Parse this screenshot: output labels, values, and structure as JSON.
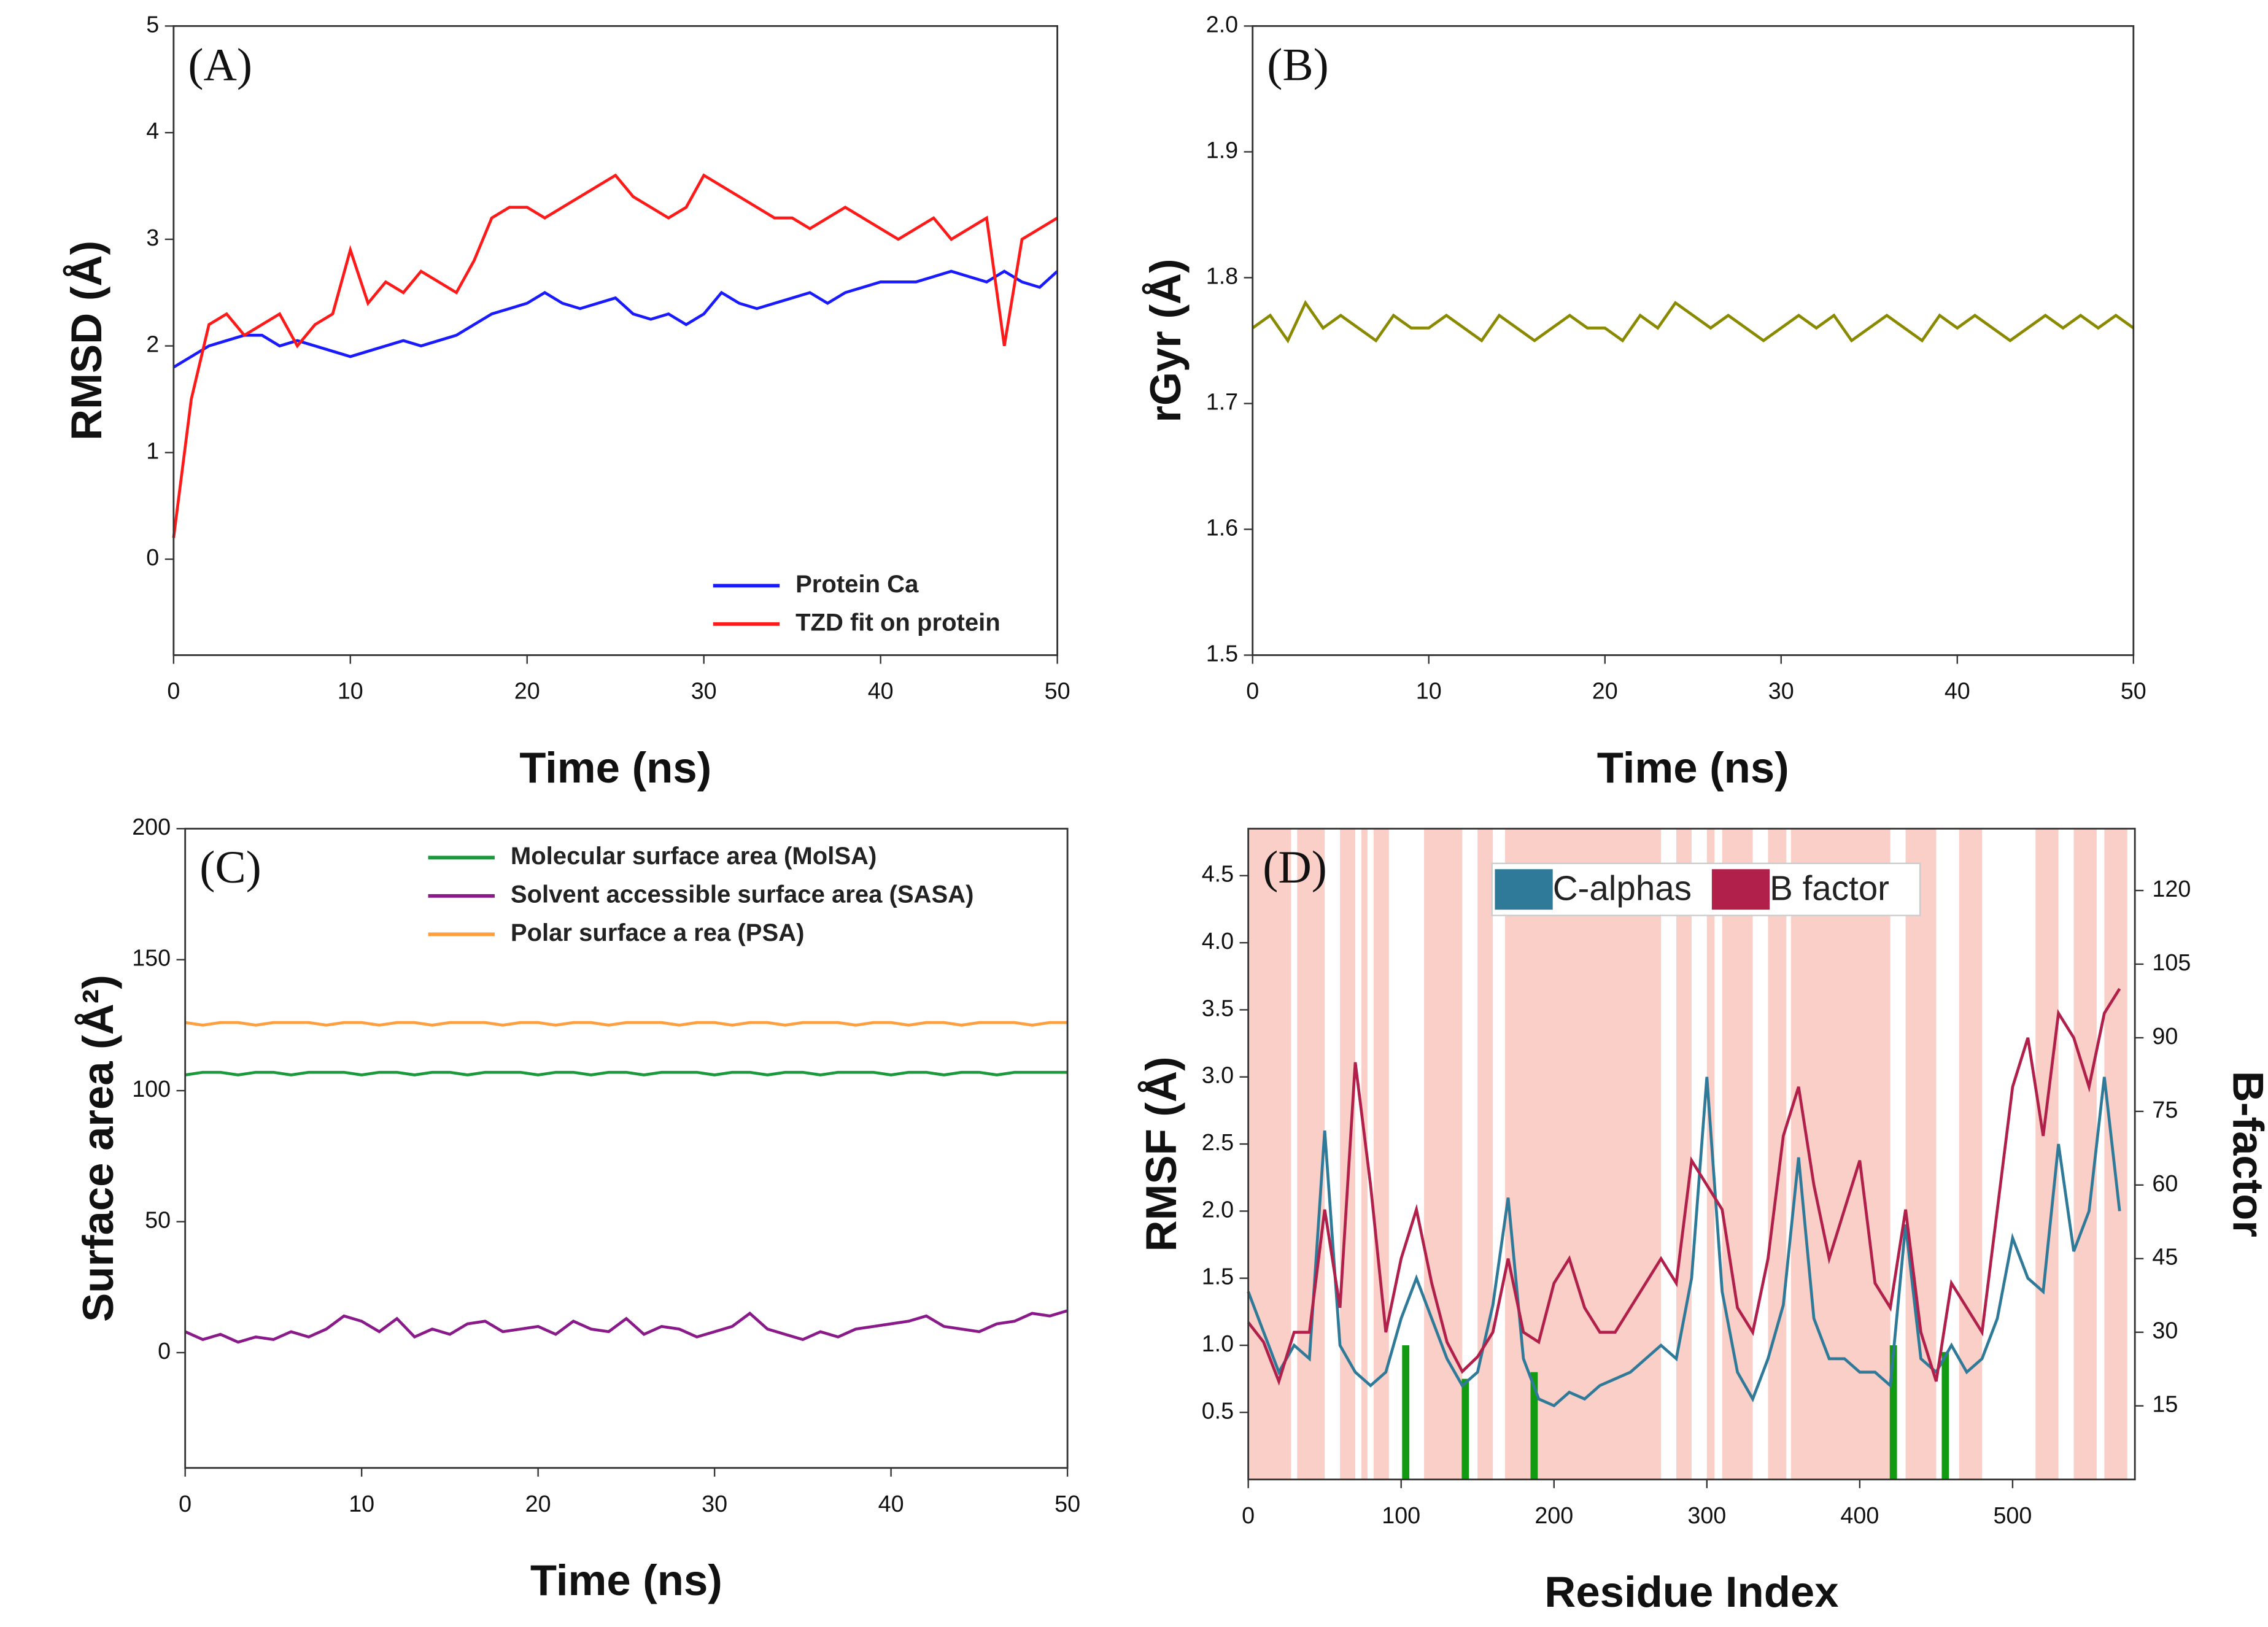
{
  "chart_data": [
    {
      "type": "line",
      "title": "(A)",
      "xlabel": "Time (ns)",
      "ylabel": "RMSD (Å)",
      "xlim": [
        0,
        50
      ],
      "xticks": [
        0,
        10,
        20,
        30,
        40,
        50
      ],
      "ylim": [
        -0.9,
        5
      ],
      "yticks": [
        0,
        1,
        2,
        3,
        4,
        5
      ],
      "legend": "lower right",
      "x": [
        0,
        1,
        2,
        3,
        4,
        5,
        6,
        7,
        8,
        9,
        10,
        11,
        12,
        13,
        14,
        15,
        16,
        17,
        18,
        19,
        20,
        21,
        22,
        23,
        24,
        25,
        26,
        27,
        28,
        29,
        30,
        31,
        32,
        33,
        34,
        35,
        36,
        37,
        38,
        39,
        40,
        41,
        42,
        43,
        44,
        45,
        46,
        47,
        48,
        49,
        50
      ],
      "series": [
        {
          "name": "Protein Ca",
          "color": "#1a1aff",
          "values": [
            1.8,
            1.9,
            2.0,
            2.05,
            2.1,
            2.1,
            2.0,
            2.05,
            2.0,
            1.95,
            1.9,
            1.95,
            2.0,
            2.05,
            2.0,
            2.05,
            2.1,
            2.2,
            2.3,
            2.35,
            2.4,
            2.5,
            2.4,
            2.35,
            2.4,
            2.45,
            2.3,
            2.25,
            2.3,
            2.2,
            2.3,
            2.5,
            2.4,
            2.35,
            2.4,
            2.45,
            2.5,
            2.4,
            2.5,
            2.55,
            2.6,
            2.6,
            2.6,
            2.65,
            2.7,
            2.65,
            2.6,
            2.7,
            2.6,
            2.55,
            2.7
          ]
        },
        {
          "name": "TZD fit on protein",
          "color": "#ff1a1a",
          "values": [
            0.2,
            1.5,
            2.2,
            2.3,
            2.1,
            2.2,
            2.3,
            2.0,
            2.2,
            2.3,
            2.9,
            2.4,
            2.6,
            2.5,
            2.7,
            2.6,
            2.5,
            2.8,
            3.2,
            3.3,
            3.3,
            3.2,
            3.3,
            3.4,
            3.5,
            3.6,
            3.4,
            3.3,
            3.2,
            3.3,
            3.6,
            3.5,
            3.4,
            3.3,
            3.2,
            3.2,
            3.1,
            3.2,
            3.3,
            3.2,
            3.1,
            3.0,
            3.1,
            3.2,
            3.0,
            3.1,
            3.2,
            2.0,
            3.0,
            3.1,
            3.2
          ]
        }
      ]
    },
    {
      "type": "line",
      "title": "(B)",
      "xlabel": "Time (ns)",
      "ylabel": "rGyr (Å)",
      "xlim": [
        0,
        50
      ],
      "xticks": [
        0,
        10,
        20,
        30,
        40,
        50
      ],
      "ylim": [
        1.5,
        2.0
      ],
      "yticks": [
        1.5,
        1.6,
        1.7,
        1.8,
        1.9,
        {
          "value": 2,
          "label": "2.0"
        }
      ],
      "x": [
        0,
        1,
        2,
        3,
        4,
        5,
        6,
        7,
        8,
        9,
        10,
        11,
        12,
        13,
        14,
        15,
        16,
        17,
        18,
        19,
        20,
        21,
        22,
        23,
        24,
        25,
        26,
        27,
        28,
        29,
        30,
        31,
        32,
        33,
        34,
        35,
        36,
        37,
        38,
        39,
        40,
        41,
        42,
        43,
        44,
        45,
        46,
        47,
        48,
        49,
        50
      ],
      "series": [
        {
          "color": "#8a8a00",
          "values": [
            1.76,
            1.77,
            1.75,
            1.78,
            1.76,
            1.77,
            1.76,
            1.75,
            1.77,
            1.76,
            1.76,
            1.77,
            1.76,
            1.75,
            1.77,
            1.76,
            1.75,
            1.76,
            1.77,
            1.76,
            1.76,
            1.75,
            1.77,
            1.76,
            1.78,
            1.77,
            1.76,
            1.77,
            1.76,
            1.75,
            1.76,
            1.77,
            1.76,
            1.77,
            1.75,
            1.76,
            1.77,
            1.76,
            1.75,
            1.77,
            1.76,
            1.77,
            1.76,
            1.75,
            1.76,
            1.77,
            1.76,
            1.77,
            1.76,
            1.77,
            1.76
          ]
        }
      ]
    },
    {
      "type": "line",
      "title": "(C)",
      "xlabel": "Time (ns)",
      "ylabel": "Surface area (Å²)",
      "xlim": [
        0,
        50
      ],
      "xticks": [
        0,
        10,
        20,
        30,
        40,
        50
      ],
      "ylim": [
        -44,
        200
      ],
      "yticks": [
        0,
        50,
        100,
        150,
        200
      ],
      "legend": "upper right",
      "x": [
        0,
        1,
        2,
        3,
        4,
        5,
        6,
        7,
        8,
        9,
        10,
        11,
        12,
        13,
        14,
        15,
        16,
        17,
        18,
        19,
        20,
        21,
        22,
        23,
        24,
        25,
        26,
        27,
        28,
        29,
        30,
        31,
        32,
        33,
        34,
        35,
        36,
        37,
        38,
        39,
        40,
        41,
        42,
        43,
        44,
        45,
        46,
        47,
        48,
        49,
        50
      ],
      "series": [
        {
          "name": "Molecular surface area (MolSA)",
          "color": "#1a9a3a",
          "values": [
            106,
            107,
            107,
            106,
            107,
            107,
            106,
            107,
            107,
            107,
            106,
            107,
            107,
            106,
            107,
            107,
            106,
            107,
            107,
            107,
            106,
            107,
            107,
            106,
            107,
            107,
            106,
            107,
            107,
            107,
            106,
            107,
            107,
            106,
            107,
            107,
            106,
            107,
            107,
            107,
            106,
            107,
            107,
            106,
            107,
            107,
            106,
            107,
            107,
            107,
            107
          ]
        },
        {
          "name": "Solvent accessible surface area (SASA)",
          "color": "#8a1a8a",
          "values": [
            8,
            5,
            7,
            4,
            6,
            5,
            8,
            6,
            9,
            14,
            12,
            8,
            13,
            6,
            9,
            7,
            11,
            12,
            8,
            9,
            10,
            7,
            12,
            9,
            8,
            13,
            7,
            10,
            9,
            6,
            8,
            10,
            15,
            9,
            7,
            5,
            8,
            6,
            9,
            10,
            11,
            12,
            14,
            10,
            9,
            8,
            11,
            12,
            15,
            14,
            16
          ]
        },
        {
          "name": "Polar surface a rea (PSA)",
          "color": "#ffa040",
          "values": [
            126,
            125,
            126,
            126,
            125,
            126,
            126,
            126,
            125,
            126,
            126,
            125,
            126,
            126,
            125,
            126,
            126,
            126,
            125,
            126,
            126,
            125,
            126,
            126,
            125,
            126,
            126,
            126,
            125,
            126,
            126,
            125,
            126,
            126,
            125,
            126,
            126,
            126,
            125,
            126,
            126,
            125,
            126,
            126,
            125,
            126,
            126,
            126,
            125,
            126,
            126
          ]
        }
      ]
    },
    {
      "type": "line",
      "title": "(D)",
      "xlabel": "Residue Index",
      "ylabel": "RMSF (Å)",
      "y2label": "B-factor",
      "xlim": [
        0,
        580
      ],
      "xticks": [
        0,
        100,
        200,
        300,
        400,
        500
      ],
      "ylim": [
        0,
        4.85
      ],
      "yticks": [
        0.5,
        {
          "value": 1,
          "label": "1.0"
        },
        1.5,
        {
          "value": 2,
          "label": "2.0"
        },
        2.5,
        {
          "value": 3,
          "label": "3.0"
        },
        3.5,
        {
          "value": 4,
          "label": "4.0"
        },
        4.5
      ],
      "y2lim": [
        0,
        132.6
      ],
      "y2ticks": [
        15,
        30,
        45,
        60,
        75,
        90,
        105,
        120
      ],
      "legend": "upper center",
      "highlight_color": "#f9cfc8",
      "highlight_ranges": [
        [
          0,
          28
        ],
        [
          32,
          50
        ],
        [
          60,
          70
        ],
        [
          74,
          78
        ],
        [
          82,
          92
        ],
        [
          115,
          140
        ],
        [
          150,
          160
        ],
        [
          168,
          270
        ],
        [
          280,
          290
        ],
        [
          300,
          305
        ],
        [
          310,
          330
        ],
        [
          340,
          352
        ],
        [
          355,
          420
        ],
        [
          430,
          450
        ],
        [
          465,
          480
        ],
        [
          515,
          530
        ],
        [
          540,
          555
        ],
        [
          560,
          575
        ]
      ],
      "bars": {
        "color": "#129a12",
        "x": [
          103,
          142,
          187,
          422,
          456
        ],
        "values": [
          1.0,
          0.75,
          0.8,
          1.0,
          0.95
        ]
      },
      "x": [
        0,
        10,
        20,
        30,
        40,
        50,
        60,
        70,
        80,
        90,
        100,
        110,
        120,
        130,
        140,
        150,
        160,
        170,
        180,
        190,
        200,
        210,
        220,
        230,
        240,
        250,
        260,
        270,
        280,
        290,
        300,
        310,
        320,
        330,
        340,
        350,
        360,
        370,
        380,
        390,
        400,
        410,
        420,
        430,
        440,
        450,
        460,
        470,
        480,
        490,
        500,
        510,
        520,
        530,
        540,
        550,
        560,
        570
      ],
      "series": [
        {
          "name": "C-alphas",
          "color": "#2f7a99",
          "values": [
            1.4,
            1.1,
            0.8,
            1.0,
            0.9,
            2.6,
            1.0,
            0.8,
            0.7,
            0.8,
            1.2,
            1.5,
            1.2,
            0.9,
            0.7,
            0.8,
            1.3,
            2.1,
            0.9,
            0.6,
            0.55,
            0.65,
            0.6,
            0.7,
            0.75,
            0.8,
            0.9,
            1.0,
            0.9,
            1.5,
            3.0,
            1.4,
            0.8,
            0.6,
            0.9,
            1.3,
            2.4,
            1.2,
            0.9,
            0.9,
            0.8,
            0.8,
            0.7,
            1.9,
            0.9,
            0.8,
            1.0,
            0.8,
            0.9,
            1.2,
            1.8,
            1.5,
            1.4,
            2.5,
            1.7,
            2.0,
            3.0,
            2.0
          ]
        },
        {
          "name": "B factor",
          "color": "#b0204a",
          "axis": "y2",
          "values": [
            32,
            28,
            20,
            30,
            30,
            55,
            35,
            85,
            60,
            30,
            45,
            55,
            40,
            28,
            22,
            25,
            30,
            45,
            30,
            28,
            40,
            45,
            35,
            30,
            30,
            35,
            40,
            45,
            40,
            65,
            60,
            55,
            35,
            30,
            45,
            70,
            80,
            60,
            45,
            55,
            65,
            40,
            35,
            55,
            30,
            20,
            40,
            35,
            30,
            55,
            80,
            90,
            70,
            95,
            90,
            80,
            95,
            100
          ]
        }
      ]
    }
  ]
}
